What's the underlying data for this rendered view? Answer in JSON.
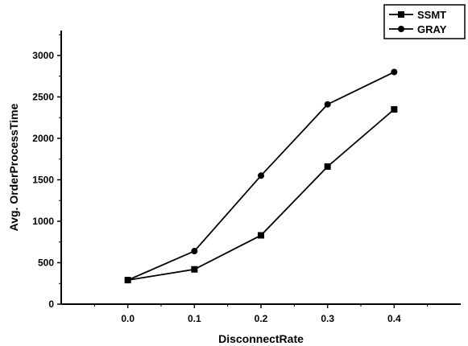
{
  "chart_data": {
    "type": "line",
    "x": [
      0.0,
      0.1,
      0.2,
      0.3,
      0.4
    ],
    "x_tick_labels": [
      "0.0",
      "0.1",
      "0.2",
      "0.3",
      "0.4"
    ],
    "y_tick_values": [
      0,
      500,
      1000,
      1500,
      2000,
      2500,
      3000
    ],
    "xlabel": "DisconnectRate",
    "ylabel": "Avg. OrderProcessTime",
    "xlim": [
      -0.1,
      0.5
    ],
    "ylim": [
      0,
      3300
    ],
    "grid": false,
    "legend_position": "top-right",
    "series": [
      {
        "name": "SSMT",
        "marker": "square",
        "color": "#000000",
        "values": [
          290,
          420,
          830,
          1660,
          2350
        ]
      },
      {
        "name": "GRAY",
        "marker": "circle",
        "color": "#000000",
        "values": [
          290,
          640,
          1550,
          2410,
          2800
        ]
      }
    ]
  }
}
